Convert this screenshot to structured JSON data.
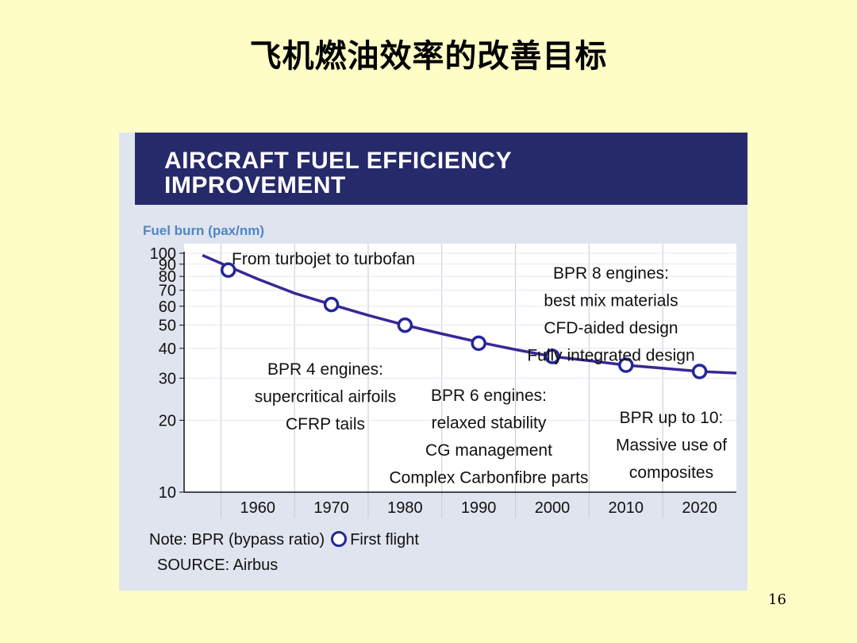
{
  "slide": {
    "title": "飞机燃油效率的改善目标",
    "page_number": "16"
  },
  "chart_data": {
    "type": "line",
    "title": "AIRCRAFT FUEL EFFICIENCY\nIMPROVEMENT",
    "ylabel": "Fuel burn (pax/nm)",
    "xlabel": "",
    "y_scale": "log",
    "ylim": [
      10,
      100
    ],
    "xlim": [
      1950,
      2025
    ],
    "x_ticks": [
      1960,
      1970,
      1980,
      1990,
      2000,
      2010,
      2020
    ],
    "y_ticks": [
      100,
      90,
      80,
      70,
      60,
      50,
      40,
      30,
      20,
      10
    ],
    "grid": true,
    "series": [
      {
        "name": "Fuel burn",
        "color": "#3a2794",
        "line_x": [
          1952.5,
          1956,
          1960,
          1965,
          1970,
          1975,
          1980,
          1985,
          1990,
          1995,
          2000,
          2005,
          2010,
          2015,
          2020,
          2025
        ],
        "line_y": [
          98,
          88,
          78,
          68,
          61,
          55,
          50,
          46,
          42.5,
          39.5,
          37,
          35.5,
          34,
          33,
          32,
          31.5
        ]
      }
    ],
    "first_flight_points": {
      "x": [
        1956,
        1970,
        1980,
        1990,
        2000,
        2010,
        2020
      ],
      "y": [
        85,
        61,
        50,
        42,
        37,
        34,
        32
      ]
    },
    "annotations": [
      {
        "lines": [
          "From turbojet to turbofan"
        ]
      },
      {
        "lines": [
          "BPR 8 engines:",
          "best mix materials",
          "CFD-aided design",
          "Fully integrated design"
        ]
      },
      {
        "lines": [
          "BPR 4 engines:",
          "supercritical airfoils",
          "CFRP tails"
        ]
      },
      {
        "lines": [
          "BPR 6 engines:",
          "relaxed stability",
          "CG management",
          "Complex Carbonfibre parts"
        ]
      },
      {
        "lines": [
          "BPR up to 10:",
          "Massive use of",
          "composites"
        ]
      }
    ],
    "note": "Note: BPR (bypass ratio)",
    "legend": "First flight",
    "source": "SOURCE: Airbus"
  }
}
